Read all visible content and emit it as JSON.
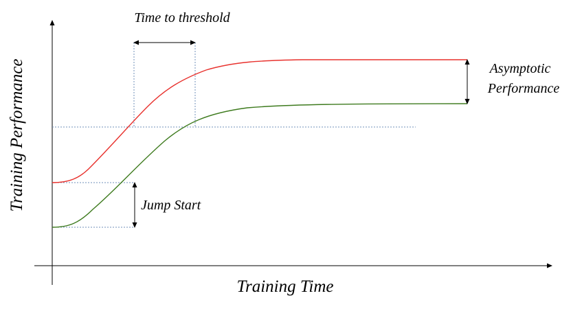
{
  "labels": {
    "y_axis_title": "Training Performance",
    "x_axis_title": "Training Time",
    "time_to_threshold": "Time to threshold",
    "jump_start": "Jump Start",
    "asymptotic_line1": "Asymptotic",
    "asymptotic_line2": "Performance"
  },
  "colors": {
    "transfer_curve": "#e8302c",
    "baseline_curve": "#3d7a1d",
    "guide_line": "#6f8fb8",
    "axis": "#000000"
  }
}
